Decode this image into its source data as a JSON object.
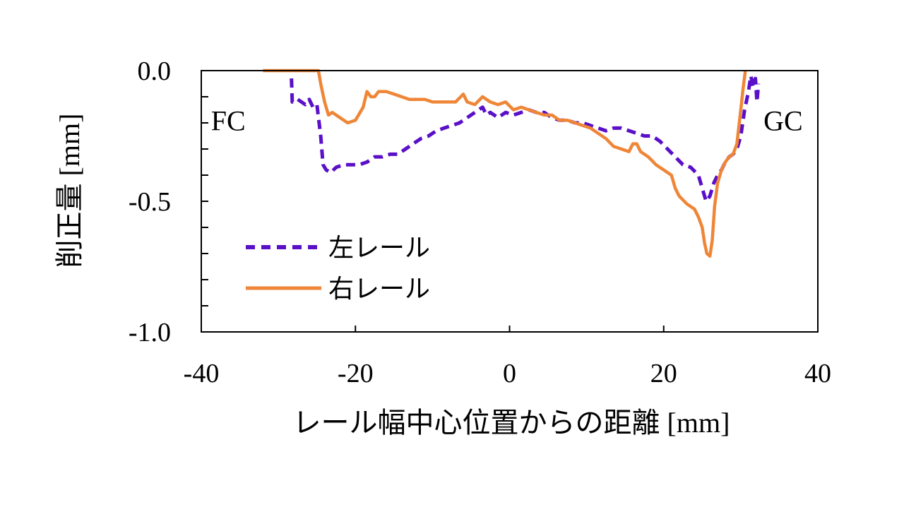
{
  "chart_data": {
    "type": "line",
    "title": "",
    "xlabel": "レール幅中心位置からの距離 [mm]",
    "ylabel": "削正量 [mm]",
    "xlim": [
      -40,
      40
    ],
    "ylim": [
      -1.0,
      0.0
    ],
    "x_ticks": [
      -40,
      -20,
      0,
      20,
      40
    ],
    "x_tick_labels": [
      "-40",
      "-20",
      "0",
      "20",
      "40"
    ],
    "y_ticks": [
      0.0,
      -0.5,
      -1.0
    ],
    "y_tick_labels": [
      "0.0",
      "-0.5",
      "-1.0"
    ],
    "y_minor_step": 0.1,
    "grid": false,
    "legend_position": "bottom-left",
    "annotations": [
      {
        "text": "FC",
        "x": -36.5,
        "y": -0.19
      },
      {
        "text": "GC",
        "x": 35.5,
        "y": -0.19
      }
    ],
    "series": [
      {
        "name": "左レール",
        "color": "#5a0fc8",
        "dash": "dashed",
        "points": [
          [
            -28.3,
            -0.03
          ],
          [
            -28.2,
            -0.12
          ],
          [
            -27.5,
            -0.11
          ],
          [
            -26.5,
            -0.13
          ],
          [
            -26.0,
            -0.11
          ],
          [
            -25.5,
            -0.14
          ],
          [
            -25.0,
            -0.13
          ],
          [
            -24.5,
            -0.25
          ],
          [
            -24.2,
            -0.36
          ],
          [
            -23.8,
            -0.38
          ],
          [
            -23.2,
            -0.39
          ],
          [
            -22.5,
            -0.37
          ],
          [
            -21.5,
            -0.36
          ],
          [
            -20.5,
            -0.36
          ],
          [
            -19.5,
            -0.36
          ],
          [
            -18.5,
            -0.35
          ],
          [
            -17.5,
            -0.33
          ],
          [
            -16.5,
            -0.33
          ],
          [
            -15.5,
            -0.32
          ],
          [
            -14.5,
            -0.32
          ],
          [
            -13.5,
            -0.3
          ],
          [
            -12.5,
            -0.28
          ],
          [
            -11.5,
            -0.26
          ],
          [
            -10.5,
            -0.25
          ],
          [
            -9.5,
            -0.23
          ],
          [
            -8.5,
            -0.22
          ],
          [
            -7.5,
            -0.21
          ],
          [
            -6.5,
            -0.2
          ],
          [
            -5.5,
            -0.18
          ],
          [
            -4.5,
            -0.16
          ],
          [
            -3.5,
            -0.14
          ],
          [
            -3.0,
            -0.17
          ],
          [
            -2.5,
            -0.16
          ],
          [
            -1.5,
            -0.18
          ],
          [
            -0.5,
            -0.16
          ],
          [
            0.5,
            -0.17
          ],
          [
            1.5,
            -0.16
          ],
          [
            2.5,
            -0.15
          ],
          [
            3.5,
            -0.16
          ],
          [
            4.5,
            -0.16
          ],
          [
            5.5,
            -0.18
          ],
          [
            6.5,
            -0.19
          ],
          [
            7.5,
            -0.19
          ],
          [
            8.5,
            -0.2
          ],
          [
            9.5,
            -0.2
          ],
          [
            10.5,
            -0.21
          ],
          [
            11.5,
            -0.22
          ],
          [
            12.5,
            -0.23
          ],
          [
            13.5,
            -0.22
          ],
          [
            14.5,
            -0.22
          ],
          [
            15.5,
            -0.23
          ],
          [
            16.5,
            -0.24
          ],
          [
            17.5,
            -0.25
          ],
          [
            18.5,
            -0.25
          ],
          [
            19.5,
            -0.27
          ],
          [
            20.5,
            -0.3
          ],
          [
            21.5,
            -0.33
          ],
          [
            22.5,
            -0.36
          ],
          [
            23.5,
            -0.37
          ],
          [
            24.5,
            -0.4
          ],
          [
            25.0,
            -0.45
          ],
          [
            25.5,
            -0.5
          ],
          [
            26.0,
            -0.48
          ],
          [
            26.5,
            -0.43
          ],
          [
            27.0,
            -0.4
          ],
          [
            27.5,
            -0.38
          ],
          [
            28.0,
            -0.35
          ],
          [
            28.5,
            -0.33
          ],
          [
            29.0,
            -0.32
          ],
          [
            29.5,
            -0.3
          ],
          [
            30.0,
            -0.25
          ],
          [
            30.5,
            -0.15
          ],
          [
            31.0,
            -0.08
          ],
          [
            31.3,
            -0.02
          ],
          [
            31.6,
            -0.06
          ],
          [
            31.9,
            -0.03
          ],
          [
            32.1,
            -0.12
          ],
          [
            32.3,
            -0.05
          ]
        ]
      },
      {
        "name": "右レール",
        "color": "#ef8637",
        "dash": "solid",
        "points": [
          [
            -32.0,
            0.0
          ],
          [
            -24.8,
            0.0
          ],
          [
            -24.5,
            -0.05
          ],
          [
            -24.0,
            -0.12
          ],
          [
            -23.5,
            -0.17
          ],
          [
            -23.0,
            -0.16
          ],
          [
            -22.0,
            -0.18
          ],
          [
            -21.0,
            -0.2
          ],
          [
            -20.0,
            -0.19
          ],
          [
            -19.0,
            -0.14
          ],
          [
            -18.5,
            -0.08
          ],
          [
            -18.0,
            -0.1
          ],
          [
            -17.5,
            -0.1
          ],
          [
            -17.0,
            -0.08
          ],
          [
            -16.0,
            -0.08
          ],
          [
            -15.0,
            -0.09
          ],
          [
            -14.0,
            -0.1
          ],
          [
            -13.0,
            -0.11
          ],
          [
            -12.0,
            -0.11
          ],
          [
            -11.0,
            -0.11
          ],
          [
            -10.0,
            -0.12
          ],
          [
            -9.0,
            -0.12
          ],
          [
            -8.0,
            -0.12
          ],
          [
            -7.0,
            -0.12
          ],
          [
            -6.0,
            -0.09
          ],
          [
            -5.5,
            -0.12
          ],
          [
            -4.5,
            -0.13
          ],
          [
            -3.5,
            -0.1
          ],
          [
            -2.5,
            -0.12
          ],
          [
            -1.5,
            -0.13
          ],
          [
            -0.5,
            -0.12
          ],
          [
            0.5,
            -0.15
          ],
          [
            1.5,
            -0.14
          ],
          [
            2.5,
            -0.15
          ],
          [
            3.5,
            -0.16
          ],
          [
            4.5,
            -0.17
          ],
          [
            5.5,
            -0.17
          ],
          [
            6.5,
            -0.19
          ],
          [
            7.5,
            -0.19
          ],
          [
            8.5,
            -0.2
          ],
          [
            9.5,
            -0.21
          ],
          [
            10.5,
            -0.22
          ],
          [
            11.5,
            -0.24
          ],
          [
            12.5,
            -0.26
          ],
          [
            13.5,
            -0.29
          ],
          [
            14.5,
            -0.3
          ],
          [
            15.5,
            -0.31
          ],
          [
            16.0,
            -0.28
          ],
          [
            16.5,
            -0.28
          ],
          [
            17.0,
            -0.31
          ],
          [
            18.0,
            -0.33
          ],
          [
            19.0,
            -0.36
          ],
          [
            20.0,
            -0.38
          ],
          [
            21.0,
            -0.4
          ],
          [
            21.5,
            -0.45
          ],
          [
            22.0,
            -0.48
          ],
          [
            23.0,
            -0.51
          ],
          [
            24.0,
            -0.53
          ],
          [
            24.5,
            -0.56
          ],
          [
            25.0,
            -0.6
          ],
          [
            25.3,
            -0.66
          ],
          [
            25.6,
            -0.7
          ],
          [
            26.0,
            -0.71
          ],
          [
            26.3,
            -0.65
          ],
          [
            26.6,
            -0.52
          ],
          [
            27.0,
            -0.43
          ],
          [
            27.5,
            -0.38
          ],
          [
            28.0,
            -0.35
          ],
          [
            28.5,
            -0.33
          ],
          [
            29.0,
            -0.32
          ],
          [
            29.5,
            -0.28
          ],
          [
            30.0,
            -0.15
          ],
          [
            30.3,
            -0.07
          ],
          [
            30.6,
            0.0
          ]
        ]
      }
    ]
  }
}
